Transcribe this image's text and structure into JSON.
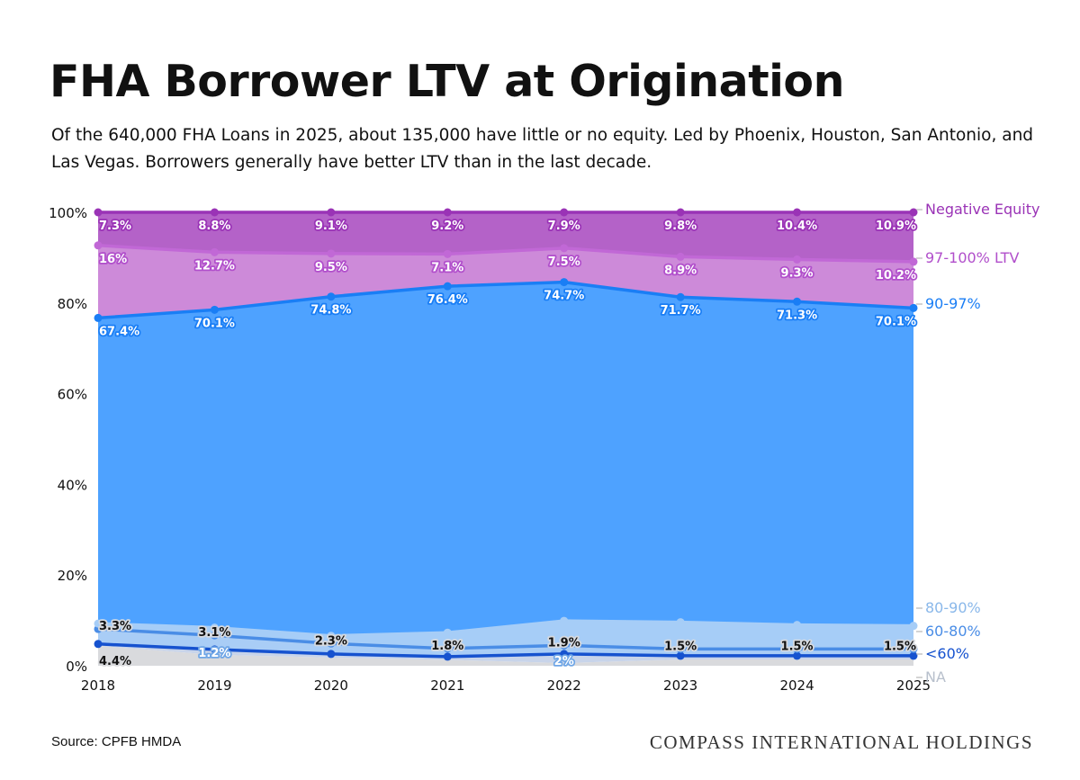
{
  "title": "FHA Borrower LTV at Origination",
  "subtitle": "Of the 640,000 FHA Loans in 2025, about 135,000 have little or no equity. Led by Phoenix, Houston, San Antonio, and Las Vegas. Borrowers generally have better LTV than in the last decade.",
  "source": "Source: CPFB HMDA",
  "brand": "COMPASS INTERNATIONAL HOLDINGS",
  "chart_data": {
    "type": "area",
    "stacked": true,
    "categories": [
      "2018",
      "2019",
      "2020",
      "2021",
      "2022",
      "2023",
      "2024",
      "2025"
    ],
    "ylim": [
      0,
      100
    ],
    "yticks": [
      "0%",
      "20%",
      "40%",
      "60%",
      "80%",
      "100%"
    ],
    "ytick_values": [
      0,
      20,
      40,
      60,
      80,
      100
    ],
    "grid": false,
    "legend_placement": "right (end labels)",
    "series": [
      {
        "name": "NA",
        "color": "#d9dadd",
        "line": "#c9ccd2",
        "text": "#b8c0cc",
        "values": [
          4.4,
          2.4,
          1.8,
          1.3,
          0.6,
          1.4,
          1.4,
          1.4
        ],
        "labels": [
          "4.4%",
          null,
          null,
          null,
          null,
          null,
          null,
          null
        ]
      },
      {
        "name": "<60%",
        "color": "#c8d4ea",
        "line": "#1652cf",
        "text": "#1652cf",
        "values": [
          0.4,
          1.2,
          0.8,
          0.7,
          2.0,
          0.8,
          0.8,
          0.8
        ],
        "labels": [
          null,
          "1.2%",
          null,
          null,
          "2%",
          null,
          null,
          null
        ]
      },
      {
        "name": "60-80%",
        "color": "#a9cdf6",
        "line": "#4a8de6",
        "text": "#4a8de6",
        "values": [
          3.3,
          3.1,
          2.3,
          1.8,
          1.9,
          1.5,
          1.5,
          1.5
        ],
        "labels": [
          "3.3%",
          "3.1%",
          "2.3%",
          "1.8%",
          "1.9%",
          "1.5%",
          "1.5%",
          "1.5%"
        ]
      },
      {
        "name": "80-90%",
        "color": "#a6cdf7",
        "line": "#a6cdf7",
        "text": "#8ab8ea",
        "values": [
          1.2,
          1.7,
          1.7,
          3.5,
          5.4,
          5.9,
          5.3,
          5.1
        ],
        "labels": [
          null,
          null,
          null,
          null,
          null,
          null,
          null,
          null
        ]
      },
      {
        "name": "90-97%",
        "color": "#4ea2ff",
        "line": "#1a7ef5",
        "text": "#1a7ef5",
        "values": [
          67.4,
          70.1,
          74.8,
          76.4,
          74.7,
          71.7,
          71.3,
          70.1
        ],
        "labels": [
          "67.4%",
          "70.1%",
          "74.8%",
          "76.4%",
          "74.7%",
          "71.7%",
          "71.3%",
          "70.1%"
        ]
      },
      {
        "name": "97-100% LTV",
        "color": "#cd8ad9",
        "line": "#c168d6",
        "text": "#b14fcb",
        "values": [
          16,
          12.7,
          9.5,
          7.1,
          7.5,
          8.9,
          9.3,
          10.2
        ],
        "labels": [
          "16%",
          "12.7%",
          "9.5%",
          "7.1%",
          "7.5%",
          "8.9%",
          "9.3%",
          "10.2%"
        ]
      },
      {
        "name": "Negative Equity",
        "color": "#b462c8",
        "line": "#9a33b6",
        "text": "#9a33b6",
        "values": [
          7.3,
          8.8,
          9.1,
          9.2,
          7.9,
          9.8,
          10.4,
          10.9
        ],
        "labels": [
          "7.3%",
          "8.8%",
          "9.1%",
          "9.2%",
          "7.9%",
          "9.8%",
          "10.4%",
          "10.9%"
        ]
      }
    ]
  }
}
